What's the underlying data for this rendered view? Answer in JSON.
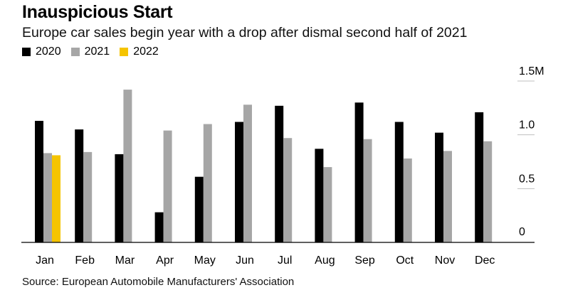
{
  "header": {
    "title": "Inauspicious Start",
    "subtitle": "Europe car sales begin year with a drop after dismal second half of 2021"
  },
  "footer": {
    "source": "Source: European Automobile Manufacturers' Association"
  },
  "colors": {
    "2020": "#000000",
    "2021": "#a6a6a6",
    "2022": "#f5c400",
    "axis": "#000000",
    "grid": "#bfbfbf"
  },
  "chart_data": {
    "type": "bar",
    "title": "Inauspicious Start",
    "subtitle": "Europe car sales begin year with a drop after dismal second half of 2021",
    "categories": [
      "Jan",
      "Feb",
      "Mar",
      "Apr",
      "May",
      "Jun",
      "Jul",
      "Aug",
      "Sep",
      "Oct",
      "Nov",
      "Dec"
    ],
    "series": [
      {
        "name": "2020",
        "values": [
          1.13,
          1.05,
          0.82,
          0.28,
          0.61,
          1.12,
          1.27,
          0.87,
          1.3,
          1.12,
          1.02,
          1.21
        ]
      },
      {
        "name": "2021",
        "values": [
          0.83,
          0.84,
          1.42,
          1.04,
          1.1,
          1.28,
          0.97,
          0.7,
          0.96,
          0.78,
          0.85,
          0.94
        ]
      },
      {
        "name": "2022",
        "values": [
          0.81,
          null,
          null,
          null,
          null,
          null,
          null,
          null,
          null,
          null,
          null,
          null
        ]
      }
    ],
    "y_ticks": [
      {
        "value": 0,
        "label": "0"
      },
      {
        "value": 0.5,
        "label": "0.5"
      },
      {
        "value": 1.0,
        "label": "1.0"
      },
      {
        "value": 1.5,
        "label": "1.5M"
      }
    ],
    "ylim": [
      0,
      1.5
    ],
    "xlabel": "",
    "ylabel": "",
    "legend": "top-left",
    "grid": false
  }
}
